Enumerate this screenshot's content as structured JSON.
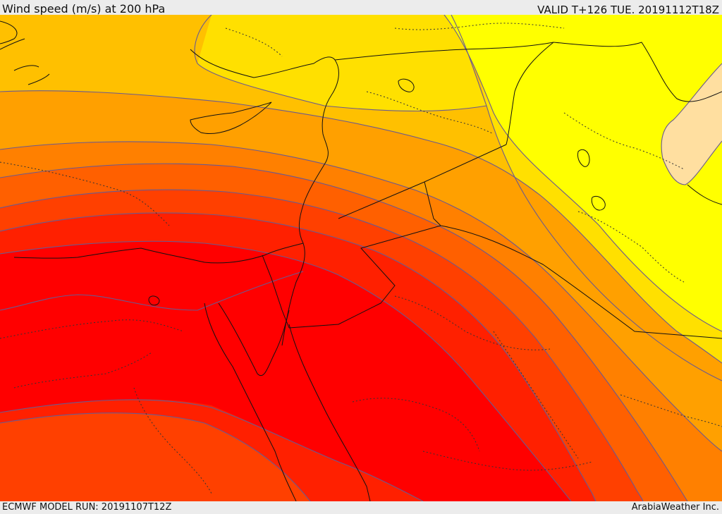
{
  "header": {
    "title": "Wind speed (m/s) at 200 hPa",
    "valid_time": "VALID T+126 TUE. 20191112T18Z"
  },
  "footer": {
    "model_run": "ECMWF MODEL RUN: 20191107T12Z",
    "credit": "ArabiaWeather Inc."
  },
  "map": {
    "field": "wind speed 200 hPa",
    "color_bands": [
      "#ffdfa0",
      "#ffff00",
      "#ffe000",
      "#ffc000",
      "#ffa000",
      "#ff8000",
      "#ff6000",
      "#ff4000",
      "#ff2000",
      "#ff0000"
    ],
    "contour_color": "#6a5a90",
    "border_color": "#111111"
  }
}
